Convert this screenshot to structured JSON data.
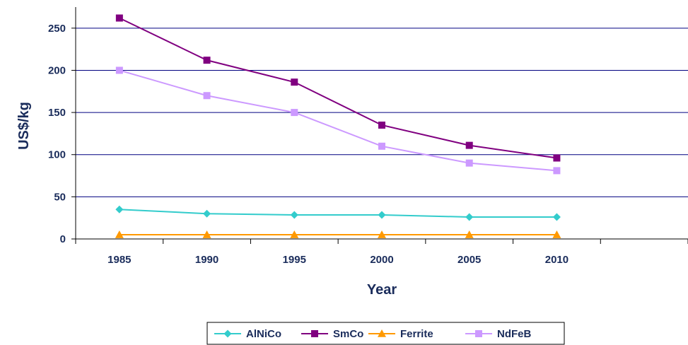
{
  "chart_data": {
    "type": "line",
    "xlabel": "Year",
    "ylabel": "US$/kg",
    "categories": [
      "1985",
      "1990",
      "1995",
      "2000",
      "2005",
      "2010"
    ],
    "ylim": [
      0,
      275
    ],
    "yticks": [
      0,
      50,
      100,
      150,
      200,
      250
    ],
    "grid": "horizontal",
    "legend_position": "bottom",
    "series": [
      {
        "name": "AlNiCo",
        "marker": "diamond",
        "color": "#33cccc",
        "values": [
          35,
          30,
          28.5,
          28.5,
          26,
          26
        ]
      },
      {
        "name": "SmCo",
        "marker": "square",
        "color": "#800080",
        "values": [
          262,
          212,
          186,
          135,
          111,
          96
        ]
      },
      {
        "name": "Ferrite",
        "marker": "triangle",
        "color": "#ff9900",
        "values": [
          5,
          5,
          5,
          5,
          5,
          5
        ]
      },
      {
        "name": "NdFeB",
        "marker": "square",
        "color": "#cc99ff",
        "values": [
          200,
          170,
          150,
          110,
          90,
          81
        ]
      }
    ]
  }
}
